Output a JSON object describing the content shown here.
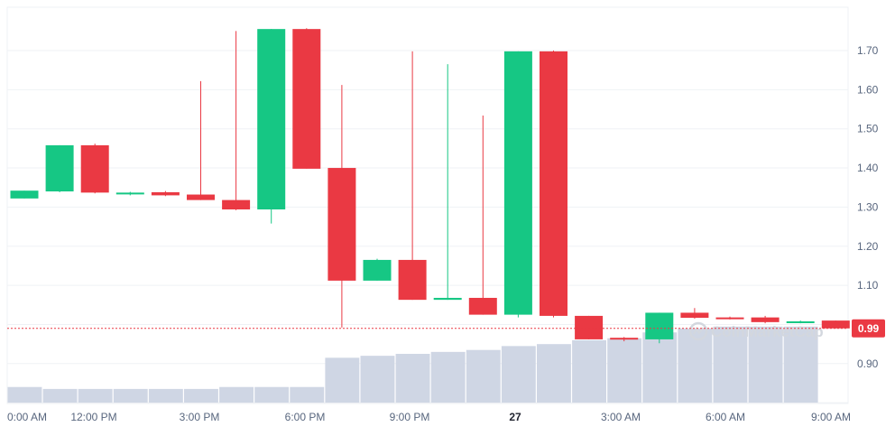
{
  "chart_data": {
    "type": "candlestick",
    "colors": {
      "up": "#16c784",
      "down": "#ea3943",
      "volume": "#cfd6e4",
      "grid": "#eff2f5",
      "axis_text": "#58667e",
      "price_line": "#ea3943"
    },
    "y_axis": {
      "ylim": [
        0.8,
        1.8
      ],
      "ticks": [
        0.9,
        1.1,
        1.2,
        1.3,
        1.4,
        1.5,
        1.6,
        1.7
      ],
      "tick_labels": [
        "0.90",
        "1.10",
        "1.20",
        "1.30",
        "1.40",
        "1.50",
        "1.60",
        "1.70"
      ]
    },
    "x_axis": {
      "tick_labels": [
        "0:00 AM",
        "12:00 PM",
        "3:00 PM",
        "6:00 PM",
        "9:00 PM",
        "27",
        "3:00 AM",
        "6:00 AM",
        "9:00 AM"
      ],
      "bold_label": "27"
    },
    "current_price": {
      "value": 0.99,
      "label": "0.99"
    },
    "watermark": "CoinMarketCap",
    "candles": [
      {
        "o": 1.322,
        "h": 1.342,
        "l": 1.322,
        "c": 1.342
      },
      {
        "o": 1.34,
        "h": 1.458,
        "l": 1.338,
        "c": 1.458
      },
      {
        "o": 1.458,
        "h": 1.462,
        "l": 1.335,
        "c": 1.337
      },
      {
        "o": 1.335,
        "h": 1.339,
        "l": 1.33,
        "c": 1.337
      },
      {
        "o": 1.338,
        "h": 1.341,
        "l": 1.328,
        "c": 1.33
      },
      {
        "o": 1.332,
        "h": 1.622,
        "l": 1.318,
        "c": 1.318
      },
      {
        "o": 1.318,
        "h": 1.75,
        "l": 1.292,
        "c": 1.294
      },
      {
        "o": 1.294,
        "h": 1.755,
        "l": 1.258,
        "c": 1.755
      },
      {
        "o": 1.755,
        "h": 1.757,
        "l": 1.398,
        "c": 1.398
      },
      {
        "o": 1.4,
        "h": 1.612,
        "l": 0.992,
        "c": 1.112
      },
      {
        "o": 1.112,
        "h": 1.168,
        "l": 1.112,
        "c": 1.165
      },
      {
        "o": 1.165,
        "h": 1.698,
        "l": 1.063,
        "c": 1.063
      },
      {
        "o": 1.063,
        "h": 1.665,
        "l": 1.063,
        "c": 1.068
      },
      {
        "o": 1.068,
        "h": 1.534,
        "l": 1.025,
        "c": 1.025
      },
      {
        "o": 1.025,
        "h": 1.698,
        "l": 1.018,
        "c": 1.698
      },
      {
        "o": 1.698,
        "h": 1.7,
        "l": 1.018,
        "c": 1.022
      },
      {
        "o": 1.022,
        "h": 1.022,
        "l": 0.962,
        "c": 0.962
      },
      {
        "o": 0.966,
        "h": 0.968,
        "l": 0.957,
        "c": 0.962
      },
      {
        "o": 0.962,
        "h": 1.03,
        "l": 0.952,
        "c": 1.03
      },
      {
        "o": 1.03,
        "h": 1.042,
        "l": 1.015,
        "c": 1.017
      },
      {
        "o": 1.018,
        "h": 1.02,
        "l": 1.013,
        "c": 1.015
      },
      {
        "o": 1.018,
        "h": 1.022,
        "l": 1.003,
        "c": 1.006
      },
      {
        "o": 1.006,
        "h": 1.01,
        "l": 1.003,
        "c": 1.008
      },
      {
        "o": 1.01,
        "h": 1.01,
        "l": 0.99,
        "c": 0.99
      }
    ],
    "volume": [
      0.08,
      0.07,
      0.07,
      0.07,
      0.07,
      0.07,
      0.08,
      0.08,
      0.08,
      0.23,
      0.24,
      0.25,
      0.26,
      0.27,
      0.29,
      0.3,
      0.32,
      0.33,
      0.36,
      0.38,
      0.39,
      0.39,
      0.39
    ]
  }
}
